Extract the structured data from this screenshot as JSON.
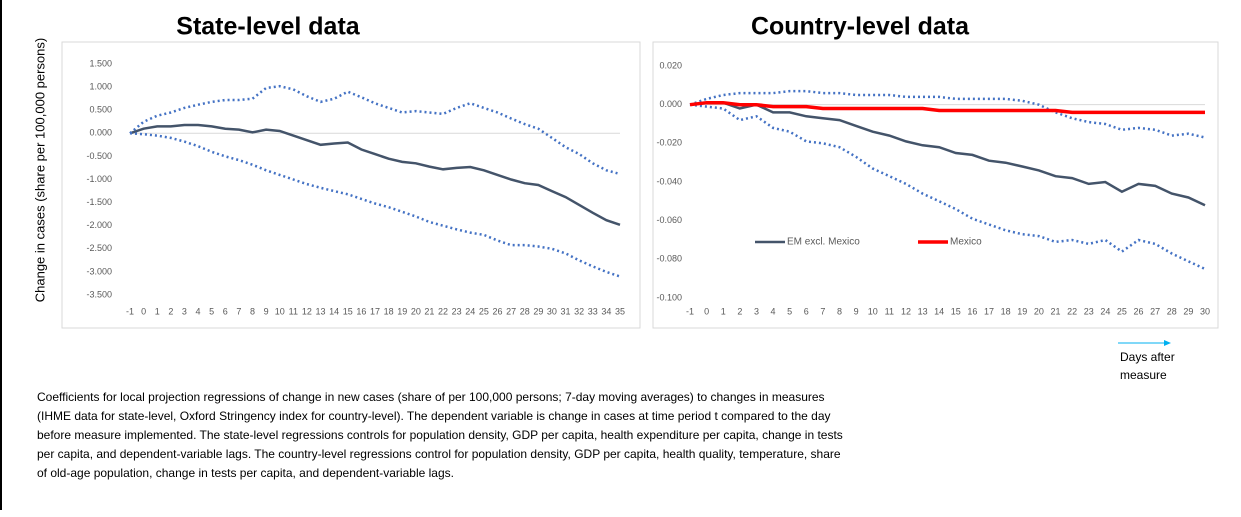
{
  "chart_data": [
    {
      "type": "line",
      "title": "State-level data",
      "y_label": "Change in cases (share per 100,000 persons)",
      "categories": [
        "-1",
        "0",
        "1",
        "2",
        "3",
        "4",
        "5",
        "6",
        "7",
        "8",
        "9",
        "10",
        "11",
        "12",
        "13",
        "14",
        "15",
        "16",
        "17",
        "18",
        "19",
        "20",
        "21",
        "22",
        "23",
        "24",
        "25",
        "26",
        "27",
        "28",
        "29",
        "30",
        "31",
        "32",
        "33",
        "34",
        "35"
      ],
      "series": [
        {
          "color": "#44546a",
          "style": "solid",
          "values": [
            0,
            0.1,
            0.15,
            0.15,
            0.18,
            0.18,
            0.15,
            0.1,
            0.08,
            0.02,
            0.08,
            0.05,
            -0.05,
            -0.15,
            -0.25,
            -0.22,
            -0.2,
            -0.35,
            -0.45,
            -0.55,
            -0.62,
            -0.65,
            -0.72,
            -0.78,
            -0.75,
            -0.73,
            -0.8,
            -0.9,
            -1.0,
            -1.08,
            -1.12,
            -1.25,
            -1.38,
            -1.55,
            -1.72,
            -1.88,
            -1.98
          ]
        },
        {
          "color": "#4472c4",
          "style": "dotted",
          "values": [
            0,
            0.25,
            0.38,
            0.45,
            0.55,
            0.62,
            0.68,
            0.72,
            0.72,
            0.75,
            0.98,
            1.02,
            0.95,
            0.8,
            0.68,
            0.75,
            0.9,
            0.78,
            0.65,
            0.55,
            0.45,
            0.48,
            0.45,
            0.42,
            0.55,
            0.65,
            0.55,
            0.45,
            0.32,
            0.2,
            0.1,
            -0.1,
            -0.3,
            -0.45,
            -0.65,
            -0.8,
            -0.88
          ]
        },
        {
          "color": "#4472c4",
          "style": "dotted",
          "values": [
            0,
            -0.02,
            -0.05,
            -0.1,
            -0.18,
            -0.28,
            -0.4,
            -0.5,
            -0.58,
            -0.68,
            -0.8,
            -0.9,
            -1.0,
            -1.1,
            -1.18,
            -1.25,
            -1.32,
            -1.42,
            -1.52,
            -1.6,
            -1.7,
            -1.8,
            -1.92,
            -2.0,
            -2.08,
            -2.15,
            -2.2,
            -2.32,
            -2.42,
            -2.42,
            -2.45,
            -2.5,
            -2.6,
            -2.75,
            -2.88,
            -3.0,
            -3.1
          ]
        }
      ],
      "ylim": [
        -3.5,
        1.5
      ],
      "yticks": [
        {
          "value": 1.5,
          "label": "1.500"
        },
        {
          "value": 1.0,
          "label": "1.000"
        },
        {
          "value": 0.5,
          "label": "0.500"
        },
        {
          "value": 0,
          "label": "0.000"
        },
        {
          "value": -0.5,
          "label": "-0.500"
        },
        {
          "value": -1.0,
          "label": "-1.000"
        },
        {
          "value": -1.5,
          "label": "-1.500"
        },
        {
          "value": -2.0,
          "label": "-2.000"
        },
        {
          "value": -2.5,
          "label": "-2.500"
        },
        {
          "value": -3.0,
          "label": "-3.000"
        },
        {
          "value": -3.5,
          "label": "-3.500"
        }
      ]
    },
    {
      "type": "line",
      "title": "Country-level data",
      "x_label": [
        "Days after",
        "measure"
      ],
      "categories": [
        "-1",
        "0",
        "1",
        "2",
        "3",
        "4",
        "5",
        "6",
        "7",
        "8",
        "9",
        "10",
        "11",
        "12",
        "13",
        "14",
        "15",
        "16",
        "17",
        "18",
        "19",
        "20",
        "21",
        "22",
        "23",
        "24",
        "25",
        "26",
        "27",
        "28",
        "29",
        "30"
      ],
      "legend": "lower-left",
      "series": [
        {
          "name": "EM excl. Mexico",
          "color": "#44546a",
          "style": "solid",
          "values": [
            0,
            0.001,
            0.001,
            -0.002,
            0,
            -0.004,
            -0.004,
            -0.006,
            -0.007,
            -0.008,
            -0.011,
            -0.014,
            -0.016,
            -0.019,
            -0.021,
            -0.022,
            -0.025,
            -0.026,
            -0.029,
            -0.03,
            -0.032,
            -0.034,
            -0.037,
            -0.038,
            -0.041,
            -0.04,
            -0.045,
            -0.041,
            -0.042,
            -0.046,
            -0.048,
            -0.052
          ]
        },
        {
          "color": "#4472c4",
          "style": "dotted",
          "values": [
            0,
            0.003,
            0.005,
            0.006,
            0.006,
            0.006,
            0.007,
            0.007,
            0.006,
            0.006,
            0.005,
            0.005,
            0.005,
            0.004,
            0.004,
            0.004,
            0.003,
            0.003,
            0.003,
            0.003,
            0.002,
            0,
            -0.004,
            -0.007,
            -0.009,
            -0.01,
            -0.013,
            -0.012,
            -0.013,
            -0.016,
            -0.015,
            -0.017
          ]
        },
        {
          "color": "#4472c4",
          "style": "dotted",
          "values": [
            0,
            -0.001,
            -0.002,
            -0.008,
            -0.006,
            -0.012,
            -0.014,
            -0.019,
            -0.02,
            -0.022,
            -0.027,
            -0.033,
            -0.037,
            -0.041,
            -0.046,
            -0.05,
            -0.054,
            -0.059,
            -0.062,
            -0.065,
            -0.067,
            -0.068,
            -0.071,
            -0.07,
            -0.072,
            -0.07,
            -0.076,
            -0.07,
            -0.072,
            -0.077,
            -0.081,
            -0.085
          ]
        },
        {
          "name": "Mexico",
          "color": "#ff0000",
          "style": "thick",
          "values": [
            0,
            0.001,
            0.001,
            0,
            0,
            -0.001,
            -0.001,
            -0.001,
            -0.002,
            -0.002,
            -0.002,
            -0.002,
            -0.002,
            -0.002,
            -0.002,
            -0.003,
            -0.003,
            -0.003,
            -0.003,
            -0.003,
            -0.003,
            -0.003,
            -0.003,
            -0.004,
            -0.004,
            -0.004,
            -0.004,
            -0.004,
            -0.004,
            -0.004,
            -0.004,
            -0.004
          ]
        }
      ],
      "ylim": [
        -0.1,
        0.02
      ],
      "yticks": [
        {
          "value": 0.02,
          "label": "0.020"
        },
        {
          "value": 0,
          "label": "0.000"
        },
        {
          "value": -0.02,
          "label": "-0.020"
        },
        {
          "value": -0.04,
          "label": "-0.040"
        },
        {
          "value": -0.06,
          "label": "-0.060"
        },
        {
          "value": -0.08,
          "label": "-0.080"
        },
        {
          "value": -0.1,
          "label": "-0.100"
        }
      ]
    }
  ],
  "caption": [
    "Coefficients for local projection regressions of change in new cases (share of per 100,000 persons; 7-day moving averages) to changes in measures",
    "(IHME data for state-level, Oxford Stringency index for country-level). The dependent variable is change in cases at time period t compared to the day",
    "before measure implemented. The state-level regressions controls for population density, GDP per capita, health expenditure per capita, change in tests",
    "per capita, and dependent-variable lags. The country-level regressions control for population density, GDP per capita, health quality, temperature, share",
    "of old-age population, change in tests per capita, and dependent-variable lags."
  ]
}
